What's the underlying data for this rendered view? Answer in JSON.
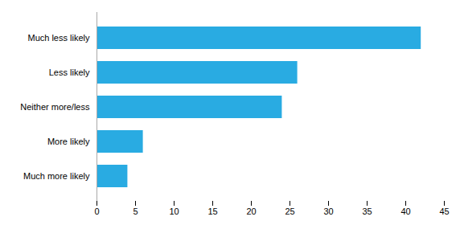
{
  "chart_data": {
    "type": "bar",
    "orientation": "horizontal",
    "categories": [
      "Much more likely",
      "More likely",
      "Neither more/less",
      "Less likely",
      "Much less likely"
    ],
    "values": [
      4,
      6,
      24,
      26,
      42
    ],
    "color": "#29ABE2",
    "xlim": [
      0,
      45
    ],
    "xticks": [
      0,
      5,
      10,
      15,
      20,
      25,
      30,
      35,
      40,
      45
    ],
    "grid": false
  }
}
